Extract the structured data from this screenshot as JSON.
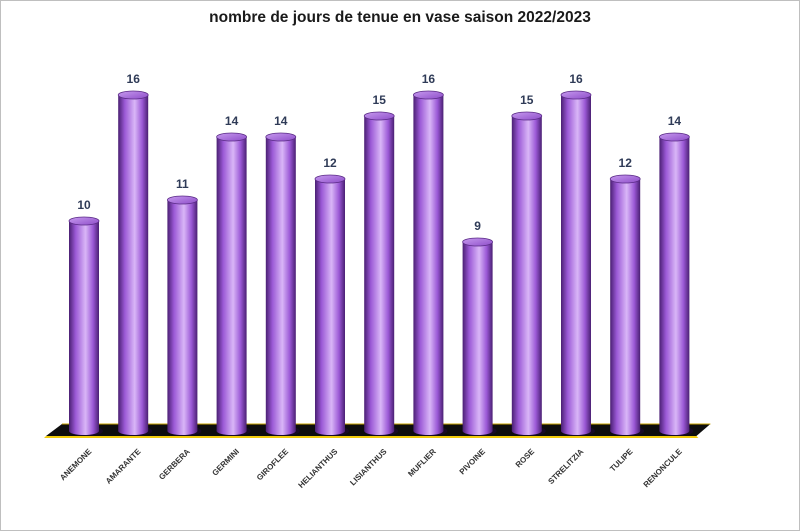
{
  "chart_data": {
    "type": "bar",
    "title": "nombre de jours de tenue en vase saison 2022/2023",
    "categories": [
      "ANEMONE",
      "AMARANTE",
      "GERBERA",
      "GERMINI",
      "GIROFLEE",
      "HELIANTHUS",
      "LISIANTHUS",
      "MUFLIER",
      "PIVOINE",
      "ROSE",
      "STRELITZIA",
      "TULIPE",
      "RENONCULE"
    ],
    "values": [
      10,
      16,
      11,
      14,
      14,
      12,
      15,
      16,
      9,
      15,
      16,
      12,
      14
    ],
    "ylim": [
      0,
      16
    ],
    "grid": false,
    "legend": "none",
    "bar_shape": "cylinder",
    "colors": {
      "bar": "#9b59d6",
      "bar_light": "#d9b6f7",
      "bar_dark": "#4a1f73",
      "floor": "#c9a400",
      "floor_edge": "#f2cc0c",
      "data_label": "#2f3b57"
    }
  }
}
